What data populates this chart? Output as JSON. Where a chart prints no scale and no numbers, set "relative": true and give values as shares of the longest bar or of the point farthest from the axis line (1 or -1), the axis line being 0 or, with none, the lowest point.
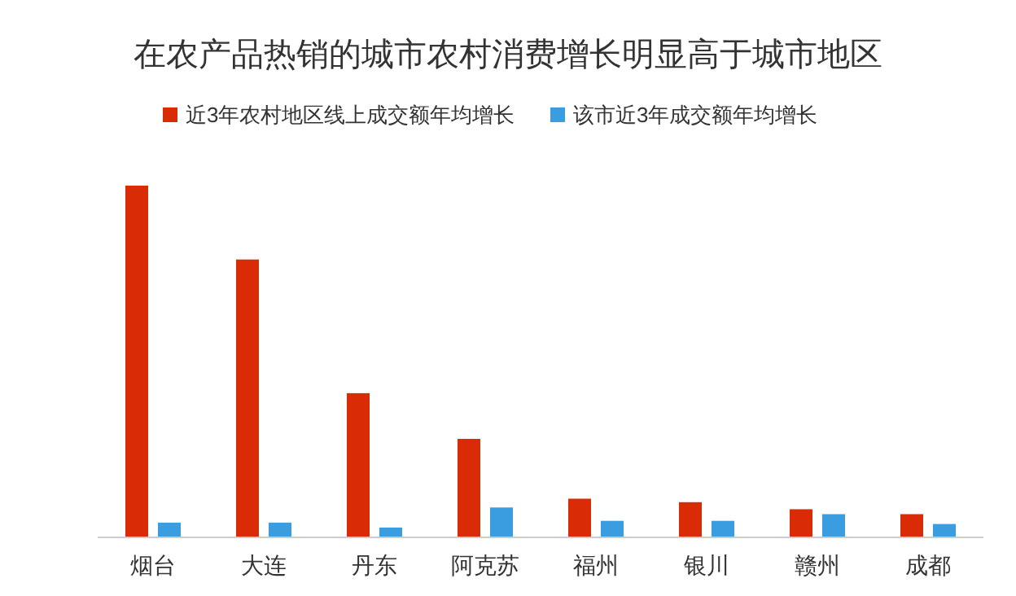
{
  "chart_data": {
    "type": "bar",
    "title": "在农产品热销的城市农村消费增长明显高于城市地区",
    "relative": true,
    "legend": "top",
    "categories": [
      "烟台",
      "大连",
      "丹东",
      "阿克苏",
      "福州",
      "银川",
      "赣州",
      "成都"
    ],
    "series": [
      {
        "name": "近3年农村地区线上成交额年均增长",
        "color": "#d92b05",
        "values": [
          1,
          0.79,
          0.41,
          0.28,
          0.11,
          0.1,
          0.08,
          0.066
        ]
      },
      {
        "name": "该市近3年成交额年均增长",
        "color": "#3a9de0",
        "values": [
          0.042,
          0.042,
          0.028,
          0.085,
          0.047,
          0.047,
          0.066,
          0.038
        ]
      }
    ]
  }
}
